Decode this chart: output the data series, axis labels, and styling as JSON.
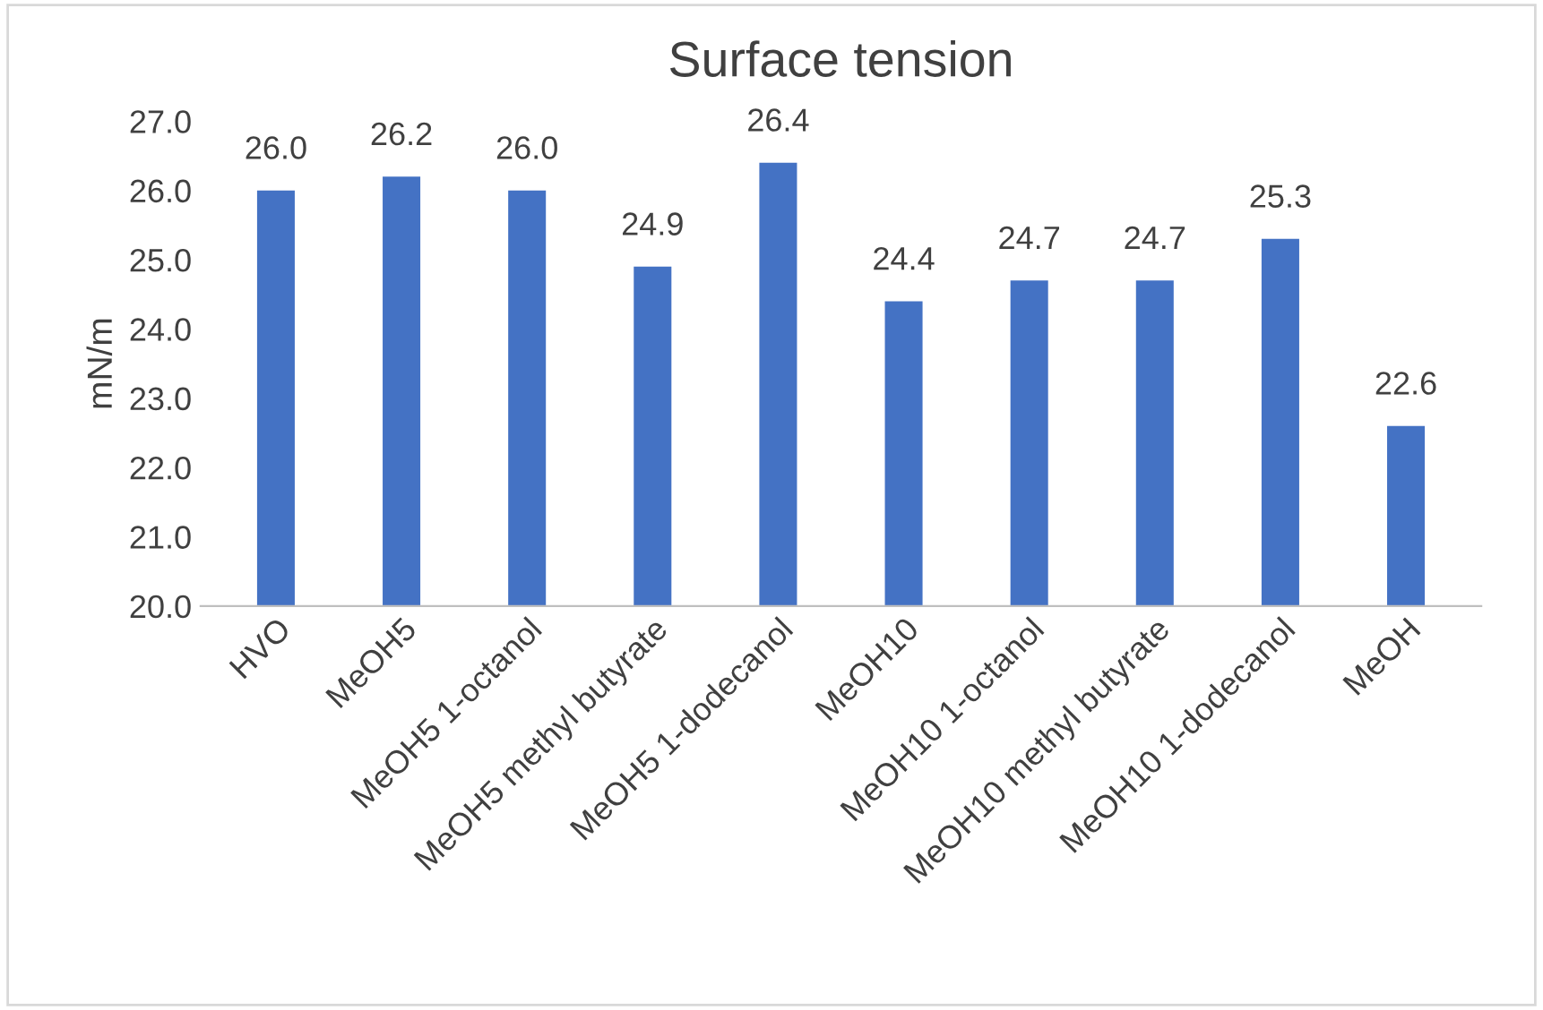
{
  "chart_data": {
    "type": "bar",
    "title": "Surface tension",
    "ylabel": "mN/m",
    "categories": [
      "HVO",
      "MeOH5",
      "MeOH5 1-octanol",
      "MeOH5 methyl butyrate",
      "MeOH5 1-dodecanol",
      "MeOH10",
      "MeOH10 1-octanol",
      "MeOH10 methyl butyrate",
      "MeOH10 1-dodecanol",
      "MeOH"
    ],
    "values": [
      26.0,
      26.2,
      26.0,
      24.9,
      26.4,
      24.4,
      24.7,
      24.7,
      25.3,
      22.6
    ],
    "value_labels": [
      "26.0",
      "26.2",
      "26.0",
      "24.9",
      "26.4",
      "24.4",
      "24.7",
      "24.7",
      "25.3",
      "22.6"
    ],
    "color": "#4472c4",
    "ylim": [
      20,
      27
    ],
    "yticks": [
      {
        "value": 20,
        "label": "20.0"
      },
      {
        "value": 21,
        "label": "21.0"
      },
      {
        "value": 22,
        "label": "22.0"
      },
      {
        "value": 23,
        "label": "23.0"
      },
      {
        "value": 24,
        "label": "24.0"
      },
      {
        "value": 25,
        "label": "25.0"
      },
      {
        "value": 26,
        "label": "26.0"
      },
      {
        "value": 27,
        "label": "27.0"
      }
    ],
    "grid": false
  }
}
